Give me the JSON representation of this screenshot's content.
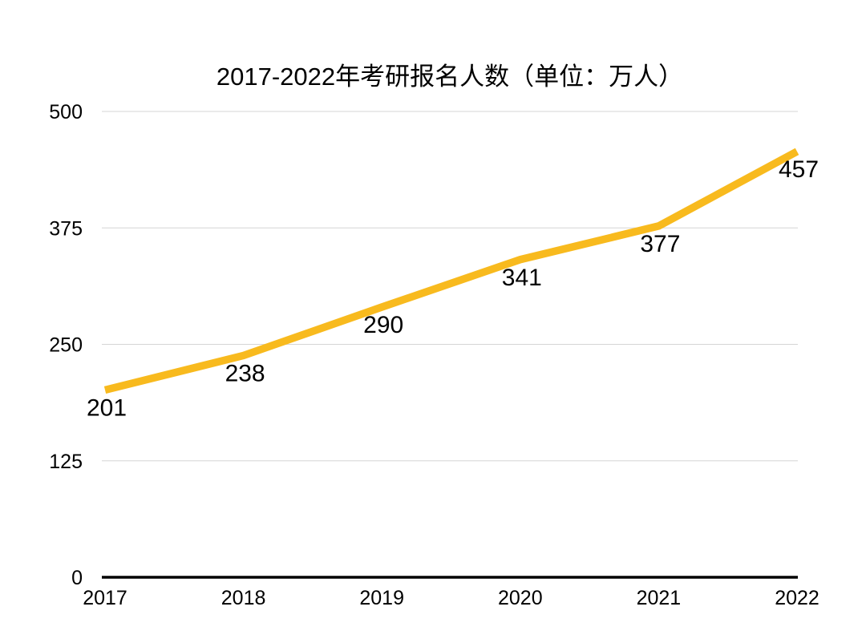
{
  "chart_data": {
    "type": "line",
    "title": "2017-2022年考研报名人数（单位：万人）",
    "categories": [
      "2017",
      "2018",
      "2019",
      "2020",
      "2021",
      "2022"
    ],
    "values": [
      201,
      238,
      290,
      341,
      377,
      457
    ],
    "data_labels": [
      "201",
      "238",
      "290",
      "341",
      "377",
      "457"
    ],
    "xlabel": "",
    "ylabel": "",
    "ylim": [
      0,
      500
    ],
    "yticks": [
      0,
      125,
      250,
      375,
      500
    ],
    "ytick_labels": [
      "0",
      "125",
      "250",
      "375",
      "500"
    ],
    "grid": true,
    "legend": false,
    "line_color": "#F8BA1E",
    "grid_color": "#D5D5D5",
    "axis_color": "#000000",
    "text_color": "#000000"
  }
}
